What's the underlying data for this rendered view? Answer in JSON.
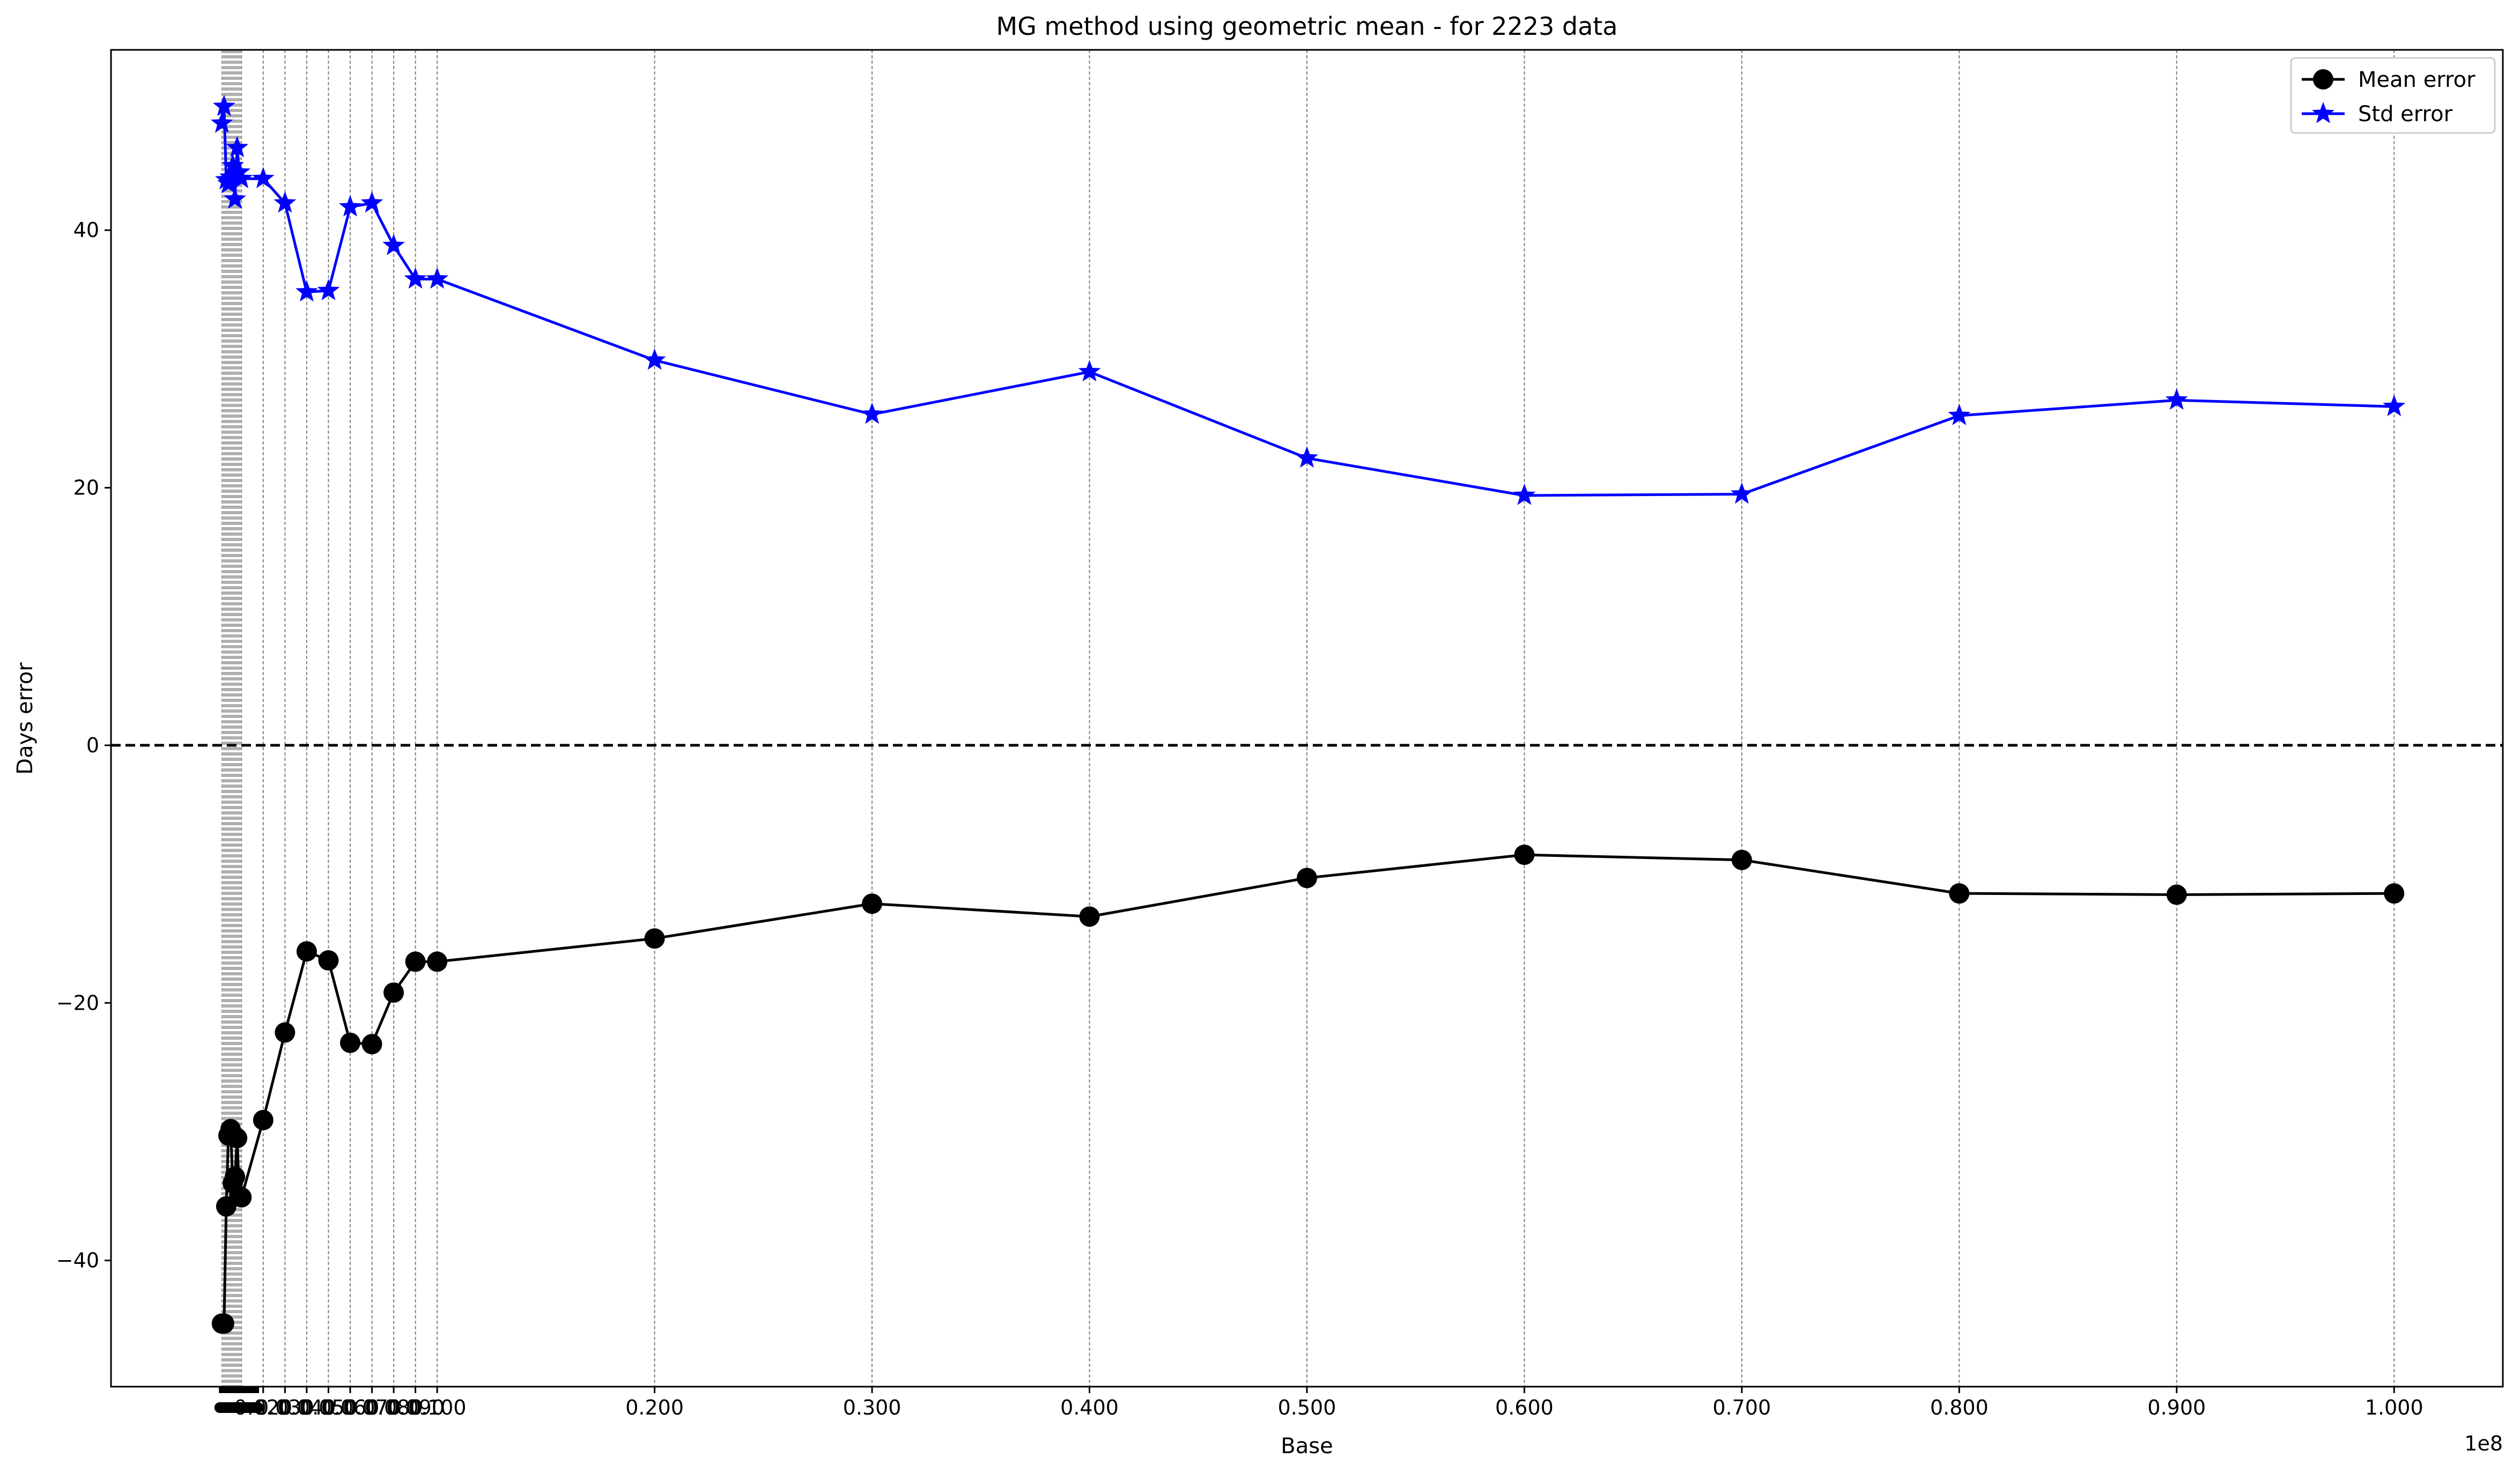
{
  "chart_data": {
    "type": "line",
    "title": "MG method using geometric mean - for 2223 data",
    "xlabel": "Base",
    "ylabel": "Days error",
    "x_offset_text": "1e8",
    "xlim": [
      -0.05,
      1.05
    ],
    "ylim": [
      -49.8,
      54.0
    ],
    "yticks": [
      -40,
      -20,
      0,
      20,
      40
    ],
    "xtick_labels_major": [
      {
        "x": 0.2,
        "label": "0.200"
      },
      {
        "x": 0.3,
        "label": "0.300"
      },
      {
        "x": 0.4,
        "label": "0.400"
      },
      {
        "x": 0.5,
        "label": "0.500"
      },
      {
        "x": 0.6,
        "label": "0.600"
      },
      {
        "x": 0.7,
        "label": "0.700"
      },
      {
        "x": 0.8,
        "label": "0.800"
      },
      {
        "x": 0.9,
        "label": "0.900"
      },
      {
        "x": 1.0,
        "label": "1.000"
      }
    ],
    "xtick_labels_crowded": [
      "0.020",
      "0.030",
      "0.040",
      "0.050",
      "0.060",
      "0.070",
      "0.080",
      "0.090",
      "0.100"
    ],
    "zero_line": true,
    "grid": "vertical dashed at every tested base",
    "legend_position": "top-right",
    "series": [
      {
        "name": "Mean error",
        "color": "#000000",
        "marker": "circle",
        "x": [
          0.001,
          0.002,
          0.003,
          0.004,
          0.005,
          0.006,
          0.007,
          0.008,
          0.009,
          0.01,
          0.02,
          0.03,
          0.04,
          0.05,
          0.06,
          0.07,
          0.08,
          0.09,
          0.1,
          0.2,
          0.3,
          0.4,
          0.5,
          0.6,
          0.7,
          0.8,
          0.9,
          1.0
        ],
        "y": [
          -44.9,
          -44.9,
          -35.8,
          -30.3,
          -29.8,
          -34.0,
          -33.5,
          -30.5,
          -35.0,
          -35.1,
          -29.1,
          -22.3,
          -16.0,
          -16.7,
          -23.1,
          -23.2,
          -19.2,
          -16.8,
          -16.8,
          -15.0,
          -12.3,
          -13.3,
          -10.3,
          -8.5,
          -8.9,
          -11.5,
          -11.6,
          -11.5
        ]
      },
      {
        "name": "Std error",
        "color": "#0000ff",
        "marker": "star",
        "x": [
          0.001,
          0.002,
          0.003,
          0.004,
          0.005,
          0.006,
          0.007,
          0.008,
          0.009,
          0.01,
          0.02,
          0.03,
          0.04,
          0.05,
          0.06,
          0.07,
          0.08,
          0.09,
          0.1,
          0.2,
          0.3,
          0.4,
          0.5,
          0.6,
          0.7,
          0.8,
          0.9,
          1.0
        ],
        "y": [
          48.3,
          49.6,
          43.9,
          43.6,
          44.1,
          45.0,
          42.4,
          46.4,
          44.5,
          44.0,
          44.0,
          42.1,
          35.2,
          35.3,
          41.8,
          42.1,
          38.8,
          36.2,
          36.2,
          29.9,
          25.7,
          29.0,
          22.3,
          19.4,
          19.5,
          25.6,
          26.8,
          26.3
        ]
      }
    ]
  }
}
